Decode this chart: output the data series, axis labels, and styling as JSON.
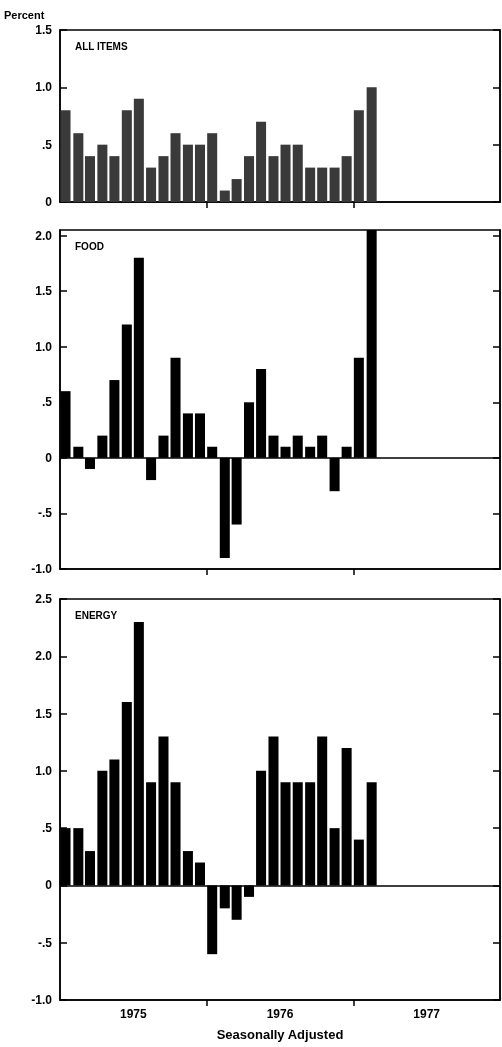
{
  "chart_data": [
    {
      "type": "bar",
      "title": "ALL ITEMS",
      "ylabel": "Percent",
      "color": "#3a3a3a",
      "grid": false,
      "tick_labels": "y",
      "x": [
        "1975-01-15",
        "1975-02-15",
        "1975-03-15",
        "1975-04-15",
        "1975-05-15",
        "1975-06-15",
        "1975-07-15",
        "1975-08-15",
        "1975-09-15",
        "1975-10-15",
        "1975-11-15",
        "1975-12-15",
        "1976-01-15",
        "1976-02-15",
        "1976-03-15",
        "1976-04-15",
        "1976-05-15",
        "1976-06-15",
        "1976-07-15",
        "1976-08-15",
        "1976-09-15",
        "1976-10-15",
        "1976-11-15",
        "1976-12-15",
        "1977-01-15",
        "1977-02-15"
      ],
      "values": [
        0.8,
        0.6,
        0.4,
        0.5,
        0.4,
        0.8,
        0.9,
        0.3,
        0.4,
        0.6,
        0.5,
        0.5,
        0.6,
        0.1,
        0.2,
        0.4,
        0.7,
        0.4,
        0.5,
        0.5,
        0.3,
        0.3,
        0.3,
        0.4,
        0.8,
        1.0
      ],
      "xlim": [
        "1975-01",
        "1978-01"
      ],
      "xticks": [
        {
          "value": "1976-01",
          "label": null
        },
        {
          "value": "1977-01",
          "label": null
        }
      ],
      "ylim": [
        0,
        1.5
      ],
      "yticks": [
        0,
        {
          "value": 0.5,
          "label": ".5"
        },
        {
          "value": 1,
          "label": "1.0"
        },
        1.5
      ]
    },
    {
      "type": "bar",
      "title": "FOOD",
      "color": "#000000",
      "grid": false,
      "tick_labels": "y",
      "x": [
        "1975-01-15",
        "1975-02-15",
        "1975-03-15",
        "1975-04-15",
        "1975-05-15",
        "1975-06-15",
        "1975-07-15",
        "1975-08-15",
        "1975-09-15",
        "1975-10-15",
        "1975-11-15",
        "1975-12-15",
        "1976-01-15",
        "1976-02-15",
        "1976-03-15",
        "1976-04-15",
        "1976-05-15",
        "1976-06-15",
        "1976-07-15",
        "1976-08-15",
        "1976-09-15",
        "1976-10-15",
        "1976-11-15",
        "1976-12-15",
        "1977-01-15",
        "1977-02-15"
      ],
      "values": [
        0.6,
        0.1,
        -0.1,
        0.2,
        0.7,
        1.2,
        1.8,
        -0.2,
        0.2,
        0.9,
        0.4,
        0.4,
        0.1,
        -0.9,
        -0.6,
        0.5,
        0.8,
        0.2,
        0.1,
        0.2,
        0.1,
        0.2,
        -0.3,
        0.1,
        0.9,
        2.05
      ],
      "xlim": [
        "1975-01",
        "1978-01"
      ],
      "xticks": [
        {
          "value": "1976-01",
          "label": null
        },
        {
          "value": "1977-01",
          "label": null
        }
      ],
      "ylim": [
        -1,
        2.05
      ],
      "yticks": [
        {
          "value": -1,
          "label": "-1.0"
        },
        {
          "value": -0.5,
          "label": "-.5"
        },
        0,
        {
          "value": 0.5,
          "label": ".5"
        },
        {
          "value": 1,
          "label": "1.0"
        },
        1.5,
        {
          "value": 2,
          "label": "2.0"
        }
      ],
      "ref_lines": [
        {
          "axis": "y",
          "value": 0,
          "color": "#000000"
        }
      ]
    },
    {
      "type": "bar",
      "title": "ENERGY",
      "xlabel": "Seasonally Adjusted",
      "color": "#000000",
      "grid": false,
      "x": [
        "1975-01-15",
        "1975-02-15",
        "1975-03-15",
        "1975-04-15",
        "1975-05-15",
        "1975-06-15",
        "1975-07-15",
        "1975-08-15",
        "1975-09-15",
        "1975-10-15",
        "1975-11-15",
        "1975-12-15",
        "1976-01-15",
        "1976-02-15",
        "1976-03-15",
        "1976-04-15",
        "1976-05-15",
        "1976-06-15",
        "1976-07-15",
        "1976-08-15",
        "1976-09-15",
        "1976-10-15",
        "1976-11-15",
        "1976-12-15",
        "1977-01-15",
        "1977-02-15"
      ],
      "values": [
        0.5,
        0.5,
        0.3,
        1.0,
        1.1,
        1.6,
        2.3,
        0.9,
        1.3,
        0.9,
        0.3,
        0.2,
        -0.6,
        -0.2,
        -0.3,
        -0.1,
        1.0,
        1.3,
        0.9,
        0.9,
        0.9,
        1.3,
        0.5,
        1.2,
        0.4,
        0.9
      ],
      "xlim": [
        "1975-01",
        "1978-01"
      ],
      "xticks": [
        {
          "value": "1976-01",
          "label": null
        },
        {
          "value": "1977-01",
          "label": null
        },
        {
          "value": "1975-07",
          "label": "1975"
        },
        {
          "value": "1976-07",
          "label": "1976"
        },
        {
          "value": "1977-07",
          "label": "1977"
        }
      ],
      "ylim": [
        -1,
        2.5
      ],
      "yticks": [
        {
          "value": -1,
          "label": "-1.0"
        },
        {
          "value": -0.5,
          "label": "-.5"
        },
        0,
        {
          "value": 0.5,
          "label": ".5"
        },
        {
          "value": 1,
          "label": "1.0"
        },
        1.5,
        {
          "value": 2,
          "label": "2.0"
        },
        2.5
      ],
      "ref_lines": [
        {
          "axis": "y",
          "value": 0,
          "color": "#000000"
        }
      ]
    }
  ]
}
